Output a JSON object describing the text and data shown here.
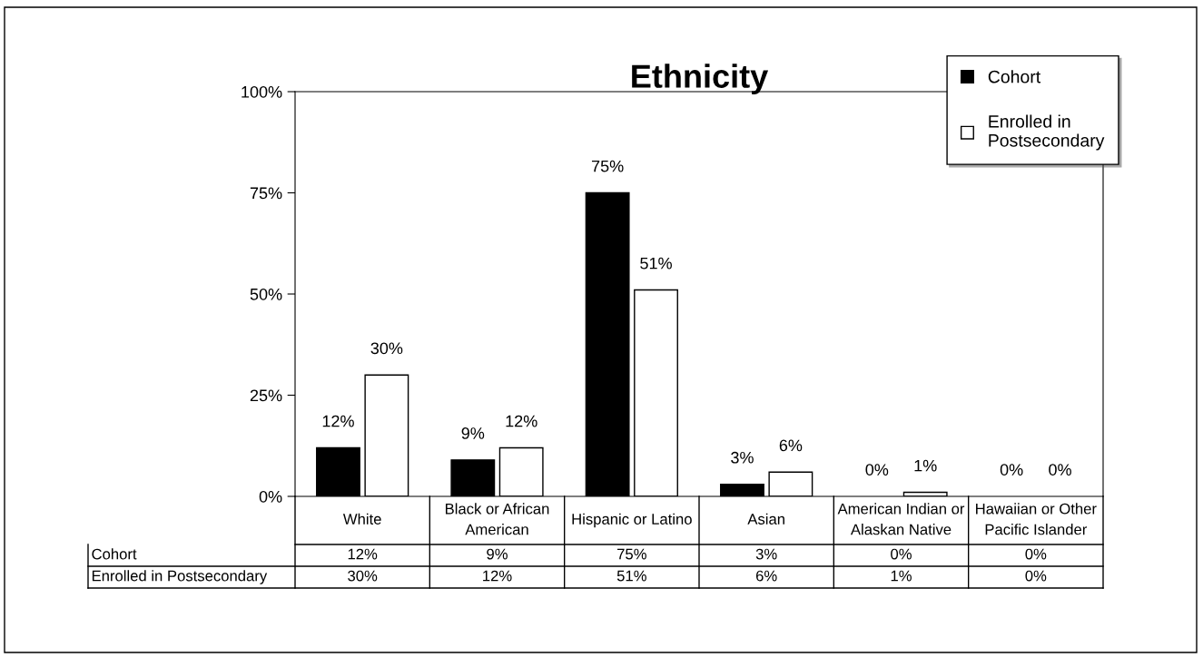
{
  "chart_data": {
    "type": "bar",
    "title": "Ethnicity",
    "categories": [
      "White",
      "Black or African\nAmerican",
      "Hispanic or Latino",
      "Asian",
      "American Indian or\nAlaskan Native",
      "Hawaiian or Other\nPacific Islander"
    ],
    "series": [
      {
        "name": "Cohort",
        "color": "#000000",
        "values": [
          12,
          9,
          75,
          3,
          0,
          0
        ],
        "value_labels": [
          "12%",
          "9%",
          "75%",
          "3%",
          "0%",
          "0%"
        ]
      },
      {
        "name": "Enrolled in\nPostsecondary",
        "color": "#ffffff",
        "values": [
          30,
          12,
          51,
          6,
          1,
          0
        ],
        "value_labels": [
          "30%",
          "12%",
          "51%",
          "6%",
          "1%",
          "0%"
        ]
      }
    ],
    "ylim": [
      0,
      100
    ],
    "yticks": [
      {
        "value": 0,
        "label": "0%"
      },
      {
        "value": 25,
        "label": "25%"
      },
      {
        "value": 50,
        "label": "50%"
      },
      {
        "value": 75,
        "label": "75%"
      },
      {
        "value": 100,
        "label": "100%"
      }
    ],
    "grid": false,
    "legend": "top right"
  }
}
